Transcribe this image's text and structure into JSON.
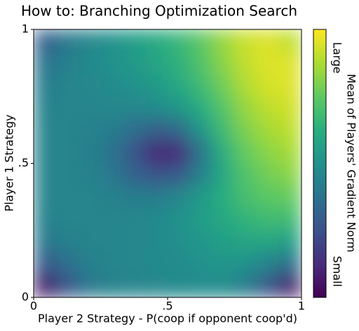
{
  "chart_data": {
    "type": "heatmap",
    "title": "How to: Branching Optimization Search",
    "xlabel": "Player 2 Strategy - P(coop if opponent coop'd)",
    "ylabel": "Player 1 Strategy",
    "colorbar_label": "Mean of Players' Gradient Norm",
    "colorbar_low": "Small",
    "colorbar_high": "Large",
    "colormap": "viridis",
    "xlim": [
      0,
      1
    ],
    "ylim": [
      0,
      1
    ],
    "xticks": [
      0,
      {
        "value": 0.5,
        "label": ".5"
      },
      1
    ],
    "yticks": [
      0,
      {
        "value": 0.5,
        "label": ".5"
      },
      1
    ],
    "values": [
      [
        0.3,
        0.4,
        0.46,
        0.5,
        0.55,
        0.6,
        0.66,
        0.74,
        0.84,
        0.92,
        0.95,
        0.9
      ],
      [
        0.38,
        0.43,
        0.47,
        0.5,
        0.54,
        0.58,
        0.64,
        0.72,
        0.82,
        0.91,
        0.95,
        0.95
      ],
      [
        0.42,
        0.45,
        0.46,
        0.48,
        0.5,
        0.54,
        0.6,
        0.68,
        0.78,
        0.88,
        0.94,
        0.95
      ],
      [
        0.44,
        0.45,
        0.45,
        0.46,
        0.46,
        0.48,
        0.52,
        0.62,
        0.73,
        0.84,
        0.9,
        0.93
      ],
      [
        0.45,
        0.45,
        0.44,
        0.42,
        0.36,
        0.3,
        0.34,
        0.52,
        0.68,
        0.8,
        0.86,
        0.9
      ],
      [
        0.45,
        0.45,
        0.43,
        0.38,
        0.26,
        0.1,
        0.12,
        0.38,
        0.63,
        0.76,
        0.82,
        0.86
      ],
      [
        0.45,
        0.45,
        0.44,
        0.4,
        0.32,
        0.26,
        0.28,
        0.44,
        0.6,
        0.72,
        0.78,
        0.82
      ],
      [
        0.45,
        0.45,
        0.45,
        0.44,
        0.42,
        0.42,
        0.46,
        0.54,
        0.62,
        0.7,
        0.74,
        0.76
      ],
      [
        0.44,
        0.45,
        0.45,
        0.45,
        0.46,
        0.47,
        0.5,
        0.55,
        0.6,
        0.65,
        0.68,
        0.68
      ],
      [
        0.4,
        0.43,
        0.45,
        0.45,
        0.46,
        0.47,
        0.49,
        0.52,
        0.56,
        0.58,
        0.58,
        0.56
      ],
      [
        0.28,
        0.36,
        0.43,
        0.45,
        0.46,
        0.47,
        0.48,
        0.5,
        0.52,
        0.5,
        0.44,
        0.36
      ],
      [
        0.06,
        0.26,
        0.4,
        0.44,
        0.45,
        0.46,
        0.47,
        0.48,
        0.48,
        0.42,
        0.26,
        0.08
      ]
    ]
  }
}
